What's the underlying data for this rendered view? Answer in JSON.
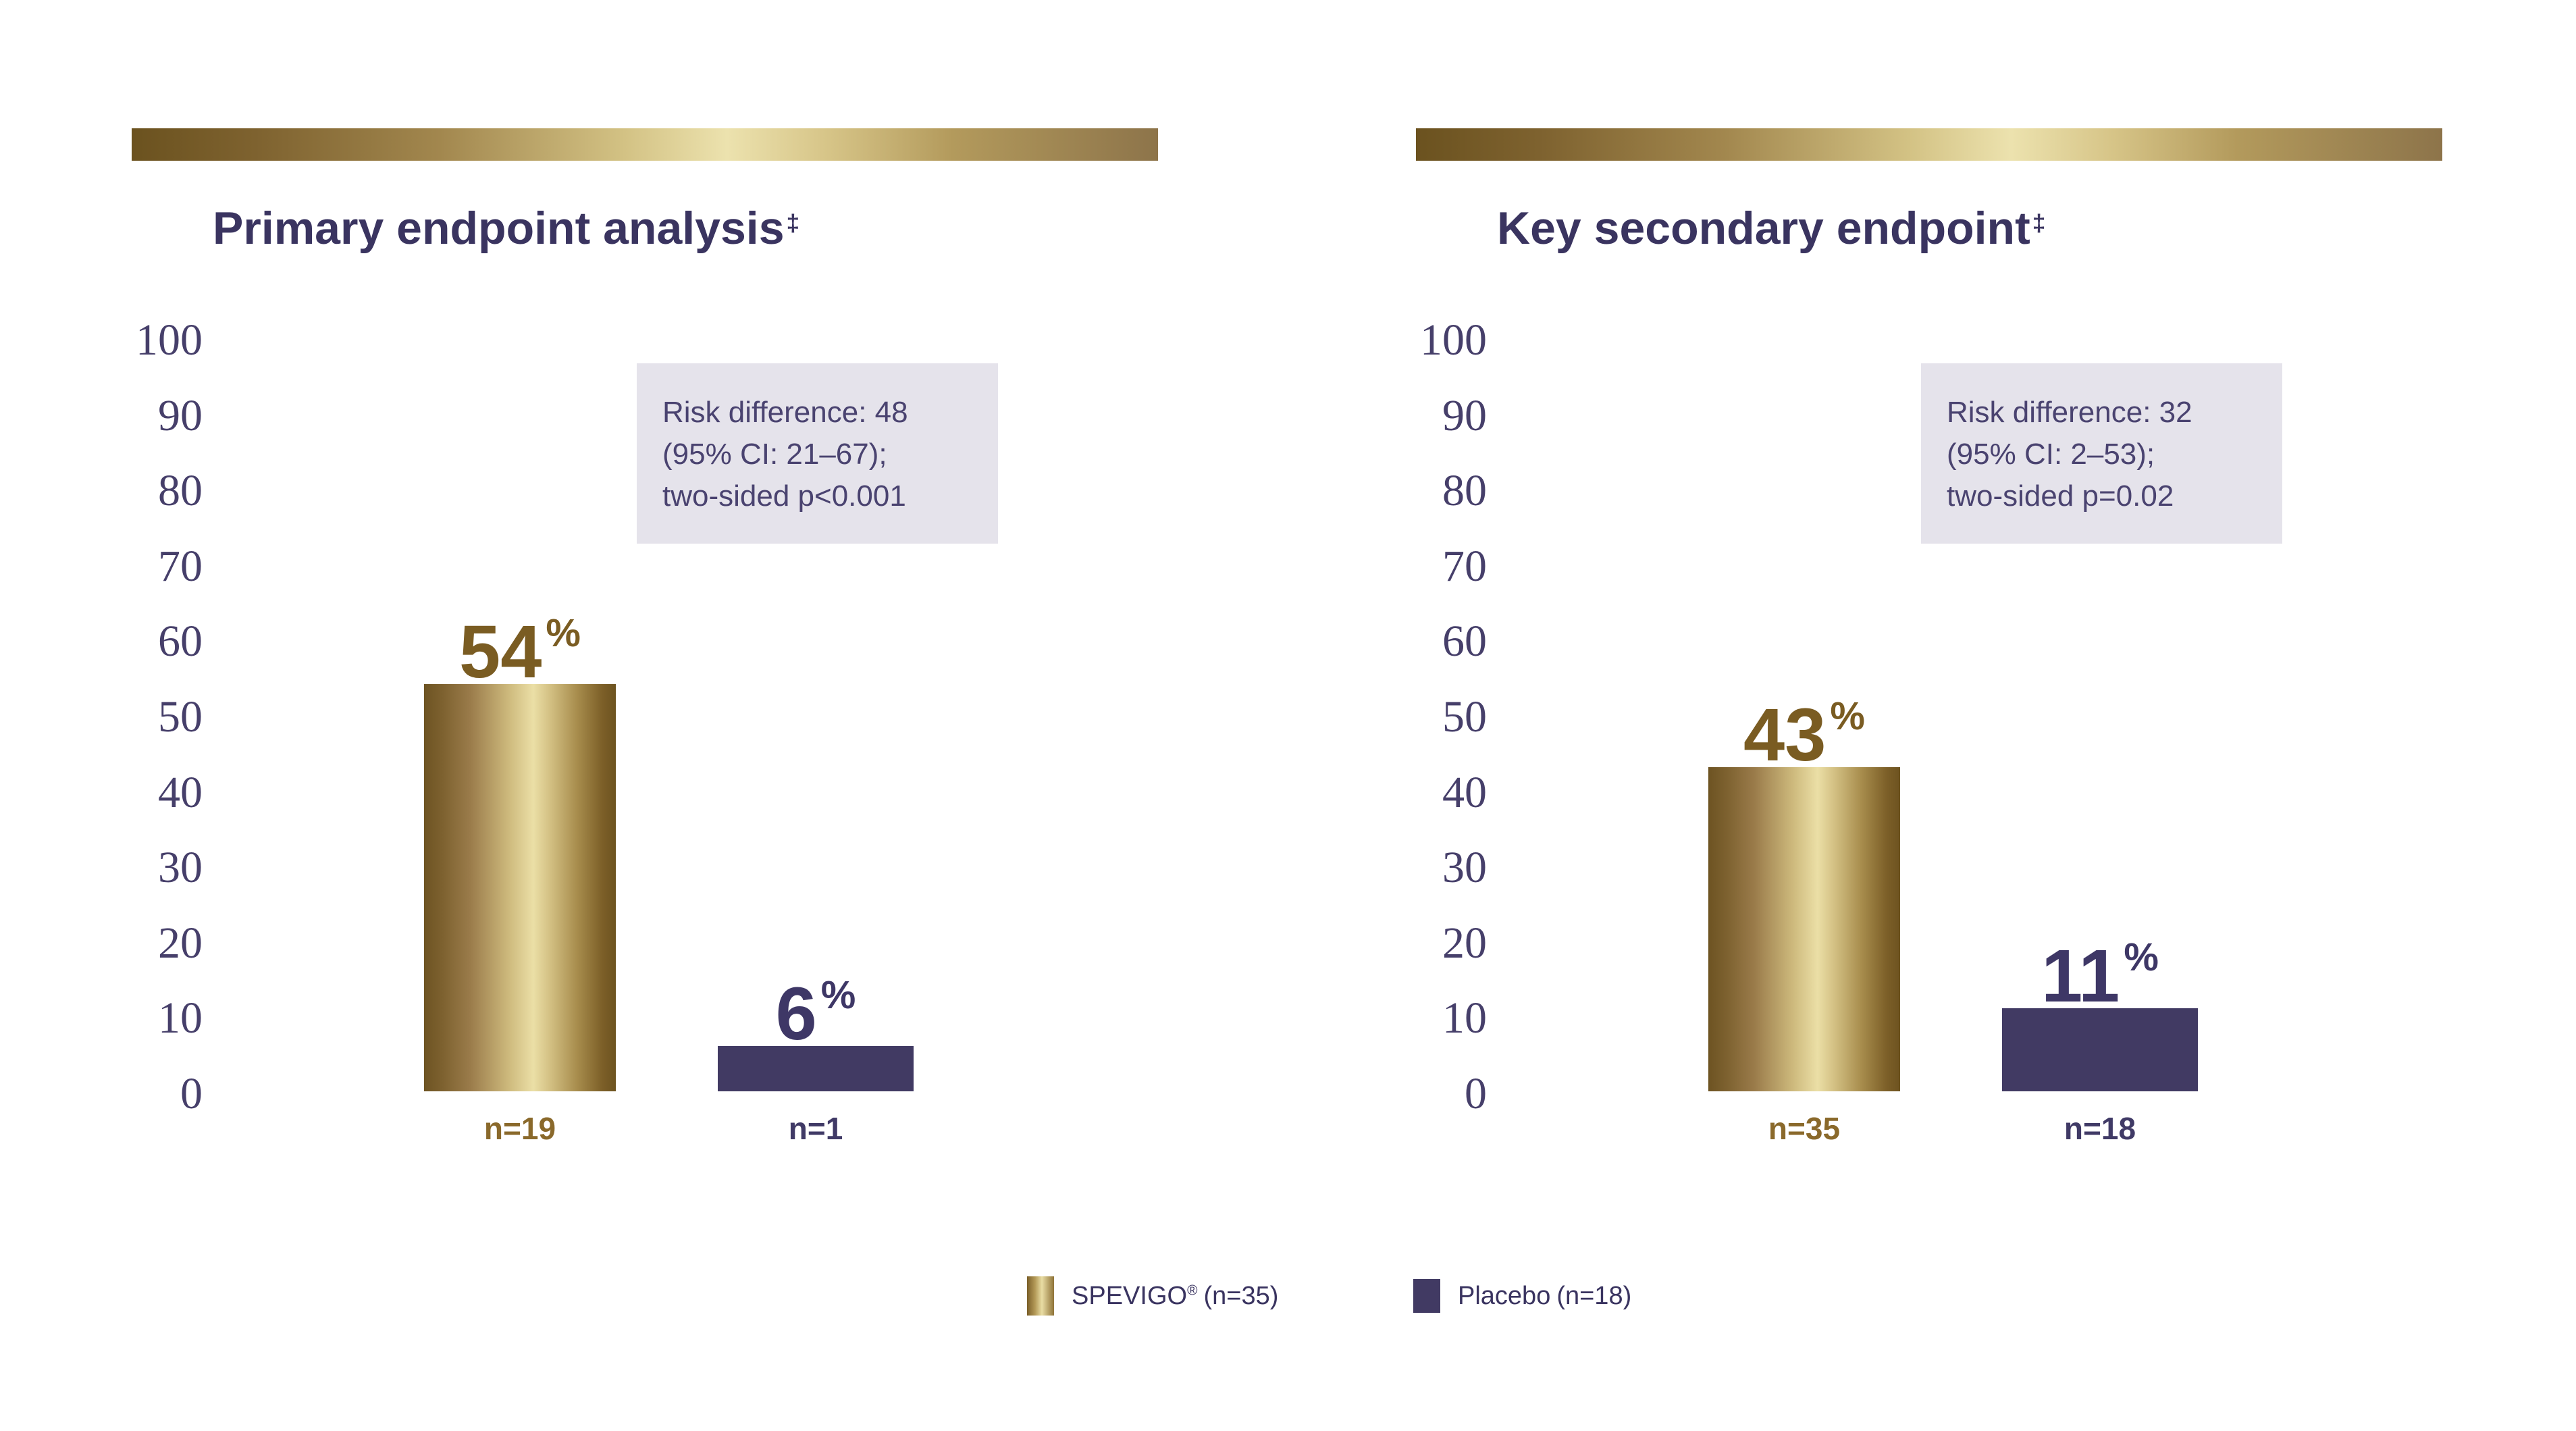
{
  "colors": {
    "background": "#ffffff",
    "navy": "#413a63",
    "navy_text": "#3e3766",
    "title_text": "#3a3460",
    "tick_text": "#463f6a",
    "gold_text": "#7a5c22",
    "gold_n_text": "#8a692b",
    "risk_box_bg": "#e5e3eb",
    "risk_text": "#4a4370",
    "gold_dark": "#6d5322",
    "gold_light": "#ebdfa6"
  },
  "chart_data": [
    {
      "type": "bar",
      "title": "Primary endpoint analysis",
      "title_superscript": "‡",
      "ylim": [
        0,
        100
      ],
      "yticks": [
        100,
        90,
        80,
        70,
        60,
        50,
        40,
        30,
        20,
        10,
        0
      ],
      "grid": false,
      "annotation": {
        "lines": [
          "Risk difference: 48",
          "(95% CI: 21–67);",
          "two-sided p<0.001"
        ]
      },
      "categories": [
        "SPEVIGO",
        "Placebo"
      ],
      "bars": [
        {
          "series": "SPEVIGO",
          "value": 54,
          "value_label": "54",
          "value_suffix": "%",
          "n_label": "n=19",
          "color": "gold"
        },
        {
          "series": "Placebo",
          "value": 6,
          "value_label": "6",
          "value_suffix": "%",
          "n_label": "n=1",
          "color": "navy"
        }
      ]
    },
    {
      "type": "bar",
      "title": "Key secondary endpoint",
      "title_superscript": "‡",
      "ylim": [
        0,
        100
      ],
      "yticks": [
        100,
        90,
        80,
        70,
        60,
        50,
        40,
        30,
        20,
        10,
        0
      ],
      "grid": false,
      "annotation": {
        "lines": [
          "Risk difference: 32",
          "(95% CI: 2–53);",
          "two-sided p=0.02"
        ]
      },
      "categories": [
        "SPEVIGO",
        "Placebo"
      ],
      "bars": [
        {
          "series": "SPEVIGO",
          "value": 43,
          "value_label": "43",
          "value_suffix": "%",
          "n_label": "n=35",
          "color": "gold"
        },
        {
          "series": "Placebo",
          "value": 11,
          "value_label": "11",
          "value_suffix": "%",
          "n_label": "n=18",
          "color": "navy"
        }
      ]
    }
  ],
  "legend": {
    "items": [
      {
        "label": "SPEVIGO® (n=35)",
        "name": "SPEVIGO",
        "reg_mark": "®",
        "count": "(n=35)",
        "swatch": "gold"
      },
      {
        "label": "Placebo (n=18)",
        "name": "Placebo",
        "reg_mark": "",
        "count": "(n=18)",
        "swatch": "navy"
      }
    ]
  }
}
